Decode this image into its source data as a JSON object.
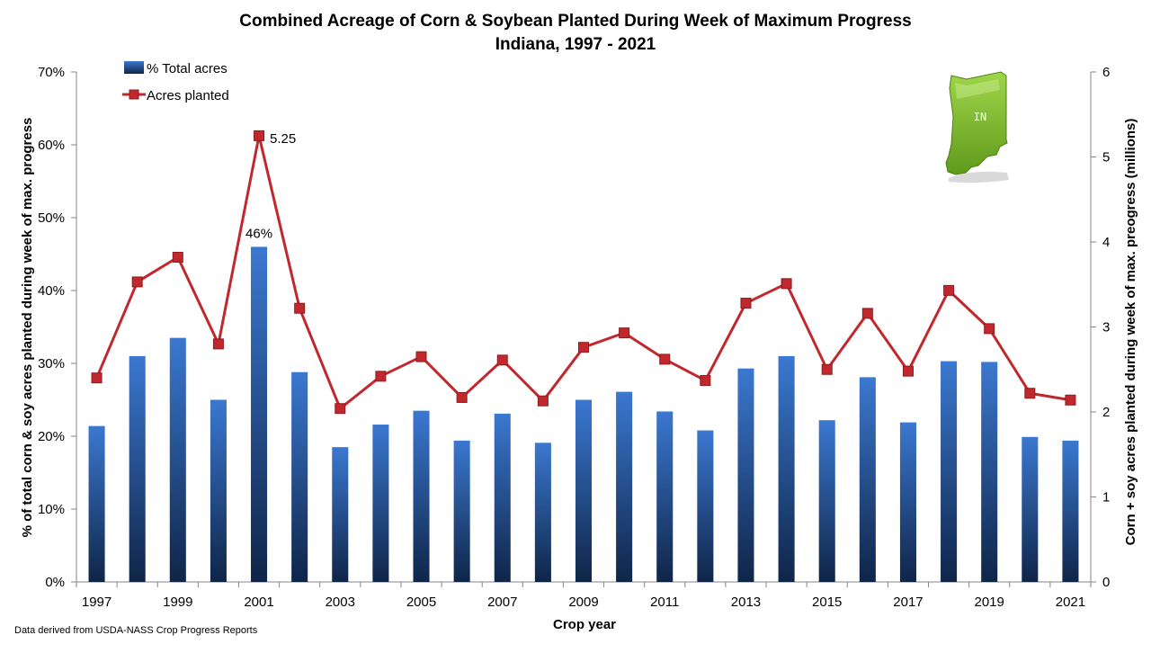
{
  "chart_data": {
    "type": "bar",
    "title": "Combined Acreage of Corn & Soybean Planted During Week of Maximum Progress",
    "subtitle": "Indiana, 1997 - 2021",
    "xlabel": "Crop year",
    "ylabel_left": "% of total corn & soy acres planted during week of max. progress",
    "ylabel_right": "Corn + soy acres planted during week of max. preogress (millions)",
    "categories": [
      "1997",
      "1998",
      "1999",
      "2000",
      "2001",
      "2002",
      "2003",
      "2004",
      "2005",
      "2006",
      "2007",
      "2008",
      "2009",
      "2010",
      "2011",
      "2012",
      "2013",
      "2014",
      "2015",
      "2016",
      "2017",
      "2018",
      "2019",
      "2020",
      "2021"
    ],
    "x_tick_labels": [
      "1997",
      "1999",
      "2001",
      "2003",
      "2005",
      "2007",
      "2009",
      "2011",
      "2013",
      "2015",
      "2017",
      "2019",
      "2021"
    ],
    "left_axis": {
      "ylim": [
        0,
        70
      ],
      "ticks": [
        0,
        10,
        20,
        30,
        40,
        50,
        60,
        70
      ],
      "tick_labels": [
        "0%",
        "10%",
        "20%",
        "30%",
        "40%",
        "50%",
        "60%",
        "70%"
      ]
    },
    "right_axis": {
      "ylim": [
        0,
        6
      ],
      "ticks": [
        0,
        1,
        2,
        3,
        4,
        5,
        6
      ],
      "tick_labels": [
        "0",
        "1",
        "2",
        "3",
        "4",
        "5",
        "6"
      ]
    },
    "series": [
      {
        "name": "% Total acres",
        "type": "bar",
        "axis": "left",
        "color": "#3b78d0",
        "color_dark": "#0f2548",
        "values": [
          21.4,
          31.0,
          33.5,
          25.0,
          46.0,
          28.8,
          18.5,
          21.6,
          23.5,
          19.4,
          23.1,
          19.1,
          25.0,
          26.1,
          23.4,
          20.8,
          29.3,
          31.0,
          22.2,
          28.1,
          21.9,
          30.3,
          30.2,
          19.9,
          19.4
        ]
      },
      {
        "name": "Acres planted",
        "type": "line",
        "axis": "right",
        "color": "#c0282d",
        "values": [
          2.4,
          3.53,
          3.82,
          2.8,
          5.25,
          3.22,
          2.04,
          2.42,
          2.65,
          2.17,
          2.61,
          2.13,
          2.76,
          2.93,
          2.62,
          2.37,
          3.28,
          3.51,
          2.5,
          3.16,
          2.48,
          3.43,
          2.98,
          2.22,
          2.14
        ]
      }
    ],
    "annotations": [
      {
        "series": "% Total acres",
        "category": "2001",
        "text": "46%"
      },
      {
        "series": "Acres planted",
        "category": "2001",
        "text": "5.25"
      }
    ],
    "legend": {
      "placement": "top-left"
    },
    "grid": false,
    "source_note": "Data derived from USDA-NASS Crop Progress Reports",
    "map_label": "IN",
    "map_color": "#7fbf2a"
  }
}
